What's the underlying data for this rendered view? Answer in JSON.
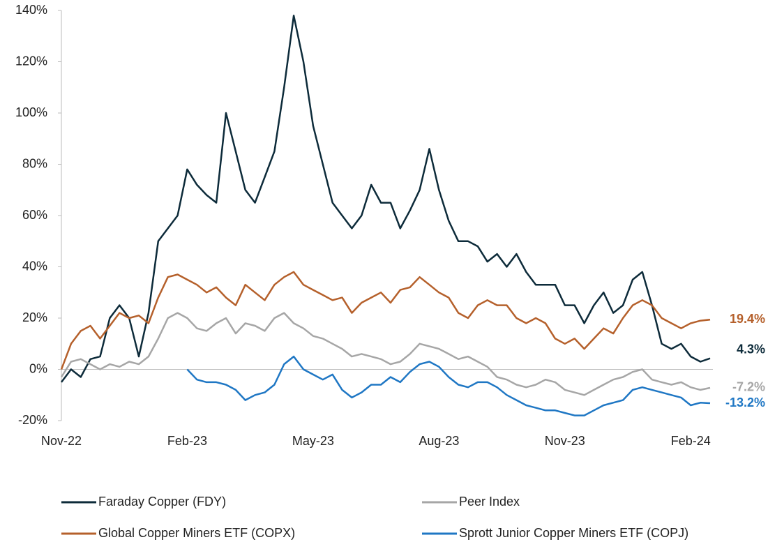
{
  "chart_data": {
    "type": "line",
    "categories": [
      "Nov-22",
      null,
      null,
      null,
      null,
      null,
      null,
      null,
      null,
      null,
      null,
      null,
      null,
      "Feb-23",
      null,
      null,
      null,
      null,
      null,
      null,
      null,
      null,
      null,
      null,
      null,
      null,
      "May-23",
      null,
      null,
      null,
      null,
      null,
      null,
      null,
      null,
      null,
      null,
      null,
      null,
      "Aug-23",
      null,
      null,
      null,
      null,
      null,
      null,
      null,
      null,
      null,
      null,
      null,
      null,
      "Nov-23",
      null,
      null,
      null,
      null,
      null,
      null,
      null,
      null,
      null,
      null,
      null,
      null,
      "Feb-24",
      null,
      null
    ],
    "ylim": [
      -20,
      140
    ],
    "yticks": [
      {
        "value": -20,
        "label": "-20%"
      },
      {
        "value": 0,
        "label": "0%"
      },
      {
        "value": 20,
        "label": "20%"
      },
      {
        "value": 40,
        "label": "40%"
      },
      {
        "value": 60,
        "label": "60%"
      },
      {
        "value": 80,
        "label": "80%"
      },
      {
        "value": 100,
        "label": "100%"
      },
      {
        "value": 120,
        "label": "120%"
      },
      {
        "value": 140,
        "label": "140%"
      }
    ],
    "series": [
      {
        "name": "Faraday Copper (FDY)",
        "color": "#0d2b3a",
        "end_label": "4.3%",
        "values": [
          -5,
          0,
          -3,
          4,
          5,
          20,
          25,
          20,
          5,
          22,
          50,
          55,
          60,
          78,
          72,
          68,
          65,
          100,
          85,
          70,
          65,
          75,
          85,
          110,
          138,
          120,
          95,
          80,
          65,
          60,
          55,
          60,
          72,
          65,
          65,
          55,
          62,
          70,
          86,
          70,
          58,
          50,
          50,
          48,
          42,
          45,
          40,
          45,
          38,
          33,
          33,
          33,
          25,
          25,
          18,
          25,
          30,
          22,
          25,
          35,
          38,
          25,
          10,
          8,
          10,
          5,
          3,
          4.3
        ]
      },
      {
        "name": "Peer Index",
        "color": "#a6a6a6",
        "end_label": "-7.2%",
        "values": [
          -3,
          3,
          4,
          2,
          0,
          2,
          1,
          3,
          2,
          5,
          12,
          20,
          22,
          20,
          16,
          15,
          18,
          20,
          14,
          18,
          17,
          15,
          20,
          22,
          18,
          16,
          13,
          12,
          10,
          8,
          5,
          6,
          5,
          4,
          2,
          3,
          6,
          10,
          9,
          8,
          6,
          4,
          5,
          3,
          1,
          -3,
          -4,
          -6,
          -7,
          -6,
          -4,
          -5,
          -8,
          -9,
          -10,
          -8,
          -6,
          -4,
          -3,
          -1,
          0,
          -4,
          -5,
          -6,
          -5,
          -7,
          -8,
          -7.2
        ]
      },
      {
        "name": "Global Copper Miners ETF (COPX)",
        "color": "#b5602b",
        "end_label": "19.4%",
        "values": [
          0,
          10,
          15,
          17,
          12,
          17,
          22,
          20,
          21,
          18,
          28,
          36,
          37,
          35,
          33,
          30,
          32,
          28,
          25,
          33,
          30,
          27,
          33,
          36,
          38,
          33,
          31,
          29,
          27,
          28,
          22,
          26,
          28,
          30,
          26,
          31,
          32,
          36,
          33,
          30,
          28,
          22,
          20,
          25,
          27,
          25,
          25,
          20,
          18,
          20,
          18,
          12,
          10,
          12,
          8,
          12,
          16,
          14,
          20,
          25,
          27,
          25,
          20,
          18,
          16,
          18,
          19,
          19.4
        ]
      },
      {
        "name": "Sprott Junior Copper Miners ETF (COPJ)",
        "color": "#1f77c4",
        "end_label": "-13.2%",
        "values": [
          null,
          null,
          null,
          null,
          null,
          null,
          null,
          null,
          null,
          null,
          null,
          null,
          null,
          0,
          -4,
          -5,
          -5,
          -6,
          -8,
          -12,
          -10,
          -9,
          -6,
          2,
          5,
          0,
          -2,
          -4,
          -2,
          -8,
          -11,
          -9,
          -6,
          -6,
          -3,
          -5,
          -1,
          2,
          3,
          1,
          -3,
          -6,
          -7,
          -5,
          -5,
          -7,
          -10,
          -12,
          -14,
          -15,
          -16,
          -16,
          -17,
          -18,
          -18,
          -16,
          -14,
          -13,
          -12,
          -8,
          -7,
          -8,
          -9,
          -10,
          -11,
          -14,
          -13,
          -13.2
        ]
      }
    ]
  }
}
